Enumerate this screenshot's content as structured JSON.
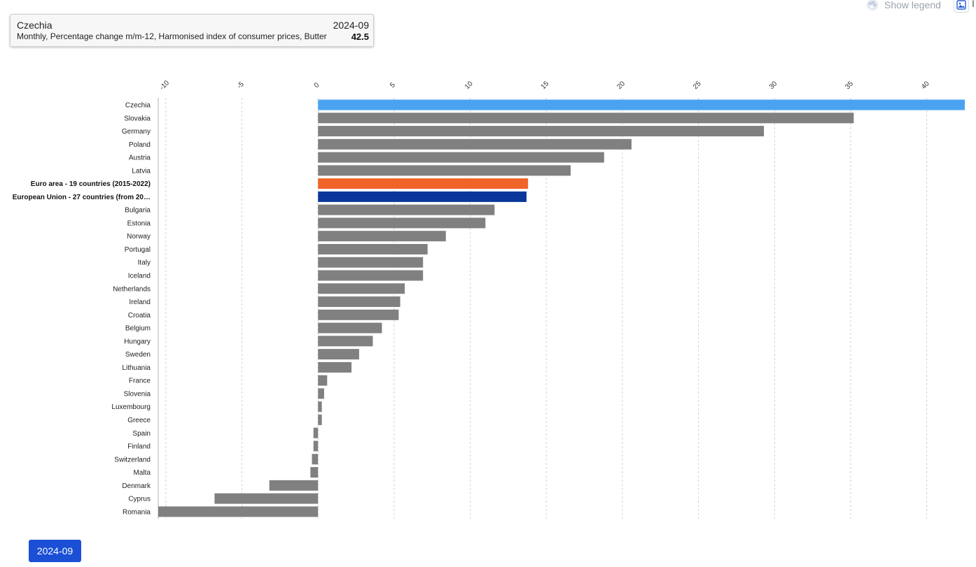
{
  "tooltip": {
    "country": "Czechia",
    "period": "2024-09",
    "description": "Monthly, Percentage change m/m-12, Harmonised index of consumer prices, Butter",
    "value": "42.5"
  },
  "toolbar": {
    "show_legend_label": "Show legend",
    "image_button_text": "I"
  },
  "period_selector": {
    "label": "2024-09"
  },
  "colors": {
    "highlight": "#4aa3f0",
    "euro_area": "#f06428",
    "eu": "#0a3799",
    "default_bar": "#808080",
    "grid": "#d0d0d0"
  },
  "chart_data": {
    "type": "bar",
    "orientation": "horizontal",
    "title": "",
    "xlabel": "",
    "ylabel": "",
    "xlim": [
      -10.5,
      42.5
    ],
    "x_ticks": [
      -10,
      -5,
      0,
      5,
      10,
      15,
      20,
      25,
      30,
      35,
      40
    ],
    "grid": true,
    "categories": [
      "Czechia",
      "Slovakia",
      "Germany",
      "Poland",
      "Austria",
      "Latvia",
      "Euro area - 19 countries  (2015-2022)",
      "European Union - 27 countries (from 20…",
      "Bulgaria",
      "Estonia",
      "Norway",
      "Portugal",
      "Italy",
      "Iceland",
      "Netherlands",
      "Ireland",
      "Croatia",
      "Belgium",
      "Hungary",
      "Sweden",
      "Lithuania",
      "France",
      "Slovenia",
      "Luxembourg",
      "Greece",
      "Spain",
      "Finland",
      "Switzerland",
      "Malta",
      "Denmark",
      "Cyprus",
      "Romania"
    ],
    "values": [
      42.5,
      35.2,
      29.3,
      20.6,
      18.8,
      16.6,
      13.8,
      13.7,
      11.6,
      11.0,
      8.4,
      7.2,
      6.9,
      6.9,
      5.7,
      5.4,
      5.3,
      4.2,
      3.6,
      2.7,
      2.2,
      0.6,
      0.4,
      0.25,
      0.25,
      -0.3,
      -0.3,
      -0.4,
      -0.5,
      -3.2,
      -6.8,
      -10.5
    ],
    "bold_categories": [
      "Euro area - 19 countries  (2015-2022)",
      "European Union - 27 countries (from 20…"
    ],
    "bar_colors": {
      "Czechia": "#4aa3f0",
      "Euro area - 19 countries  (2015-2022)": "#f06428",
      "European Union - 27 countries (from 20…": "#0a3799"
    }
  }
}
